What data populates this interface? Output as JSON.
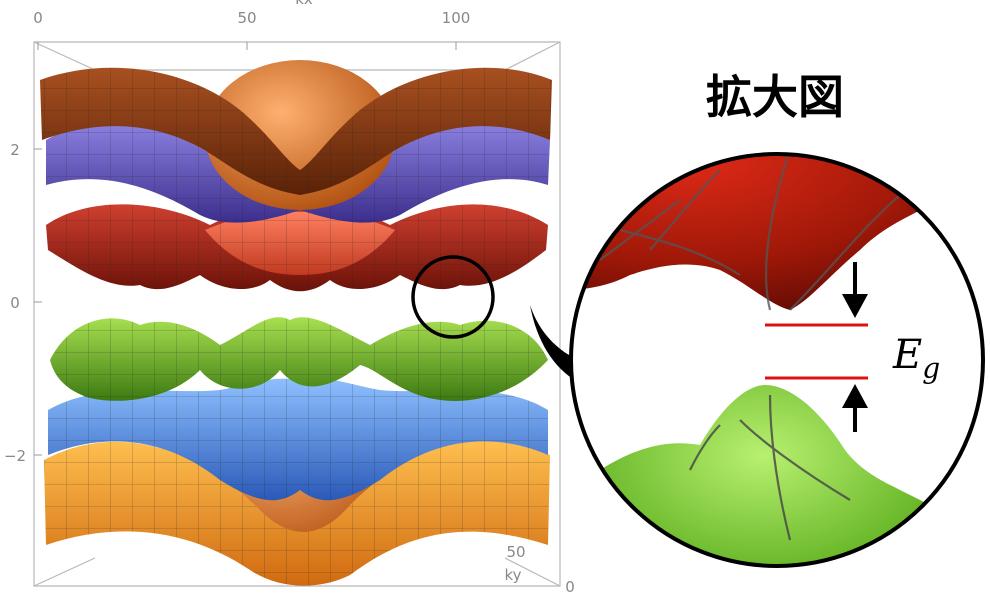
{
  "plot": {
    "top_ticks": [
      "0",
      "50",
      "100"
    ],
    "top_axis_label": "kx",
    "z_ticks": [
      "2",
      "0",
      "−2"
    ],
    "bottom_tick": "0",
    "bottom_corner_tick": "50",
    "bottom_axis_label": "ky",
    "band_colors": {
      "upper_outer": "#9a4513",
      "upper_middle": "#6f63c8",
      "upper_inner": "#b22a1a",
      "lower_inner": "#6fb52a",
      "lower_middle": "#4f86d8",
      "lower_outer": "#f09a2a"
    }
  },
  "zoom": {
    "title": "拡大図",
    "gap_symbol": "E",
    "gap_subscript": "g",
    "gap_line_color": "#e01010",
    "conduction_color": "#b01a10",
    "valence_color": "#7cc42e"
  }
}
